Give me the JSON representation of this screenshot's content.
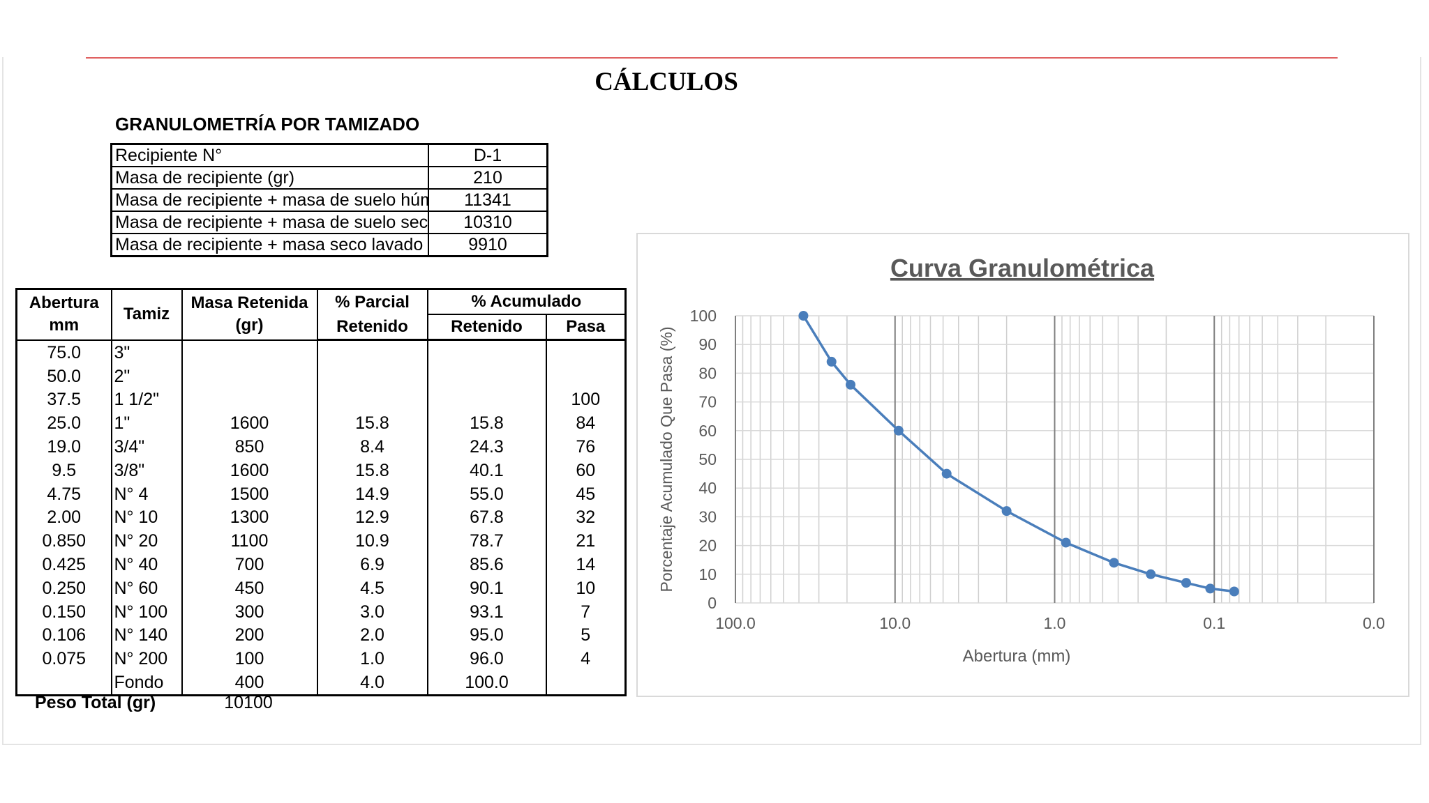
{
  "title": "CÁLCULOS",
  "section_title": "GRANULOMETRÍA POR TAMIZADO",
  "container_table": {
    "rows": [
      [
        "Recipiente N°",
        "D-1"
      ],
      [
        "Masa de recipiente (gr)",
        "210"
      ],
      [
        "Masa de recipiente + masa de suelo húmedo",
        "11341"
      ],
      [
        "Masa de recipiente + masa de suelo seco",
        "10310"
      ],
      [
        "Masa de recipiente + masa seco lavado",
        "9910"
      ]
    ]
  },
  "sieve_table": {
    "header": {
      "abertura": "Abertura",
      "abertura_unit": "mm",
      "tamiz": "Tamiz",
      "masa": "Masa Retenida",
      "masa_unit": "(gr)",
      "parcial": "% Parcial",
      "parcial_sub": "Retenido",
      "acumulado": "% Acumulado",
      "retenido": "Retenido",
      "pasa": "Pasa"
    },
    "rows": [
      [
        "75.0",
        "3\"",
        null,
        null,
        null,
        null
      ],
      [
        "50.0",
        "2\"",
        null,
        null,
        null,
        null
      ],
      [
        "37.5",
        "1 1/2\"",
        null,
        null,
        null,
        "100"
      ],
      [
        "25.0",
        "1\"",
        "1600",
        "15.8",
        "15.8",
        "84"
      ],
      [
        "19.0",
        "3/4\"",
        "850",
        "8.4",
        "24.3",
        "76"
      ],
      [
        "9.5",
        "3/8\"",
        "1600",
        "15.8",
        "40.1",
        "60"
      ],
      [
        "4.75",
        "N° 4",
        "1500",
        "14.9",
        "55.0",
        "45"
      ],
      [
        "2.00",
        "N° 10",
        "1300",
        "12.9",
        "67.8",
        "32"
      ],
      [
        "0.850",
        "N° 20",
        "1100",
        "10.9",
        "78.7",
        "21"
      ],
      [
        "0.425",
        "N° 40",
        "700",
        "6.9",
        "85.6",
        "14"
      ],
      [
        "0.250",
        "N° 60",
        "450",
        "4.5",
        "90.1",
        "10"
      ],
      [
        "0.150",
        "N° 100",
        "300",
        "3.0",
        "93.1",
        "7"
      ],
      [
        "0.106",
        "N° 140",
        "200",
        "2.0",
        "95.0",
        "5"
      ],
      [
        "0.075",
        "N° 200",
        "100",
        "1.0",
        "96.0",
        "4"
      ],
      [
        null,
        "Fondo",
        "400",
        "4.0",
        "100.0",
        null
      ]
    ],
    "total_label": "Peso Total (gr)",
    "total": "10100"
  },
  "chart_data": {
    "type": "line",
    "title": "Curva Granulométrica",
    "x_label": "Abertura (mm)",
    "y_label": "Porcentaje Acumulado Que Pasa (%)",
    "x": [
      37.5,
      25,
      19,
      9.5,
      4.75,
      2,
      0.85,
      0.425,
      0.25,
      0.15,
      0.106,
      0.075
    ],
    "values": [
      100,
      84,
      76,
      60,
      45,
      32,
      21,
      14,
      10,
      7,
      5,
      4
    ],
    "color": "#4a7ebb",
    "x_log": true,
    "xlim": [
      100,
      0.01
    ],
    "xticks": [
      {
        "value": 100,
        "label": "100.0"
      },
      {
        "value": 10,
        "label": "10.0"
      },
      {
        "value": 1,
        "label": "1.0"
      },
      {
        "value": 0.1,
        "label": "0.1"
      },
      {
        "value": 0.01,
        "label": "0.0"
      }
    ],
    "ylim": [
      0,
      100
    ],
    "yticks": [
      0,
      10,
      20,
      30,
      40,
      50,
      60,
      70,
      80,
      90,
      100
    ],
    "grid": true
  }
}
